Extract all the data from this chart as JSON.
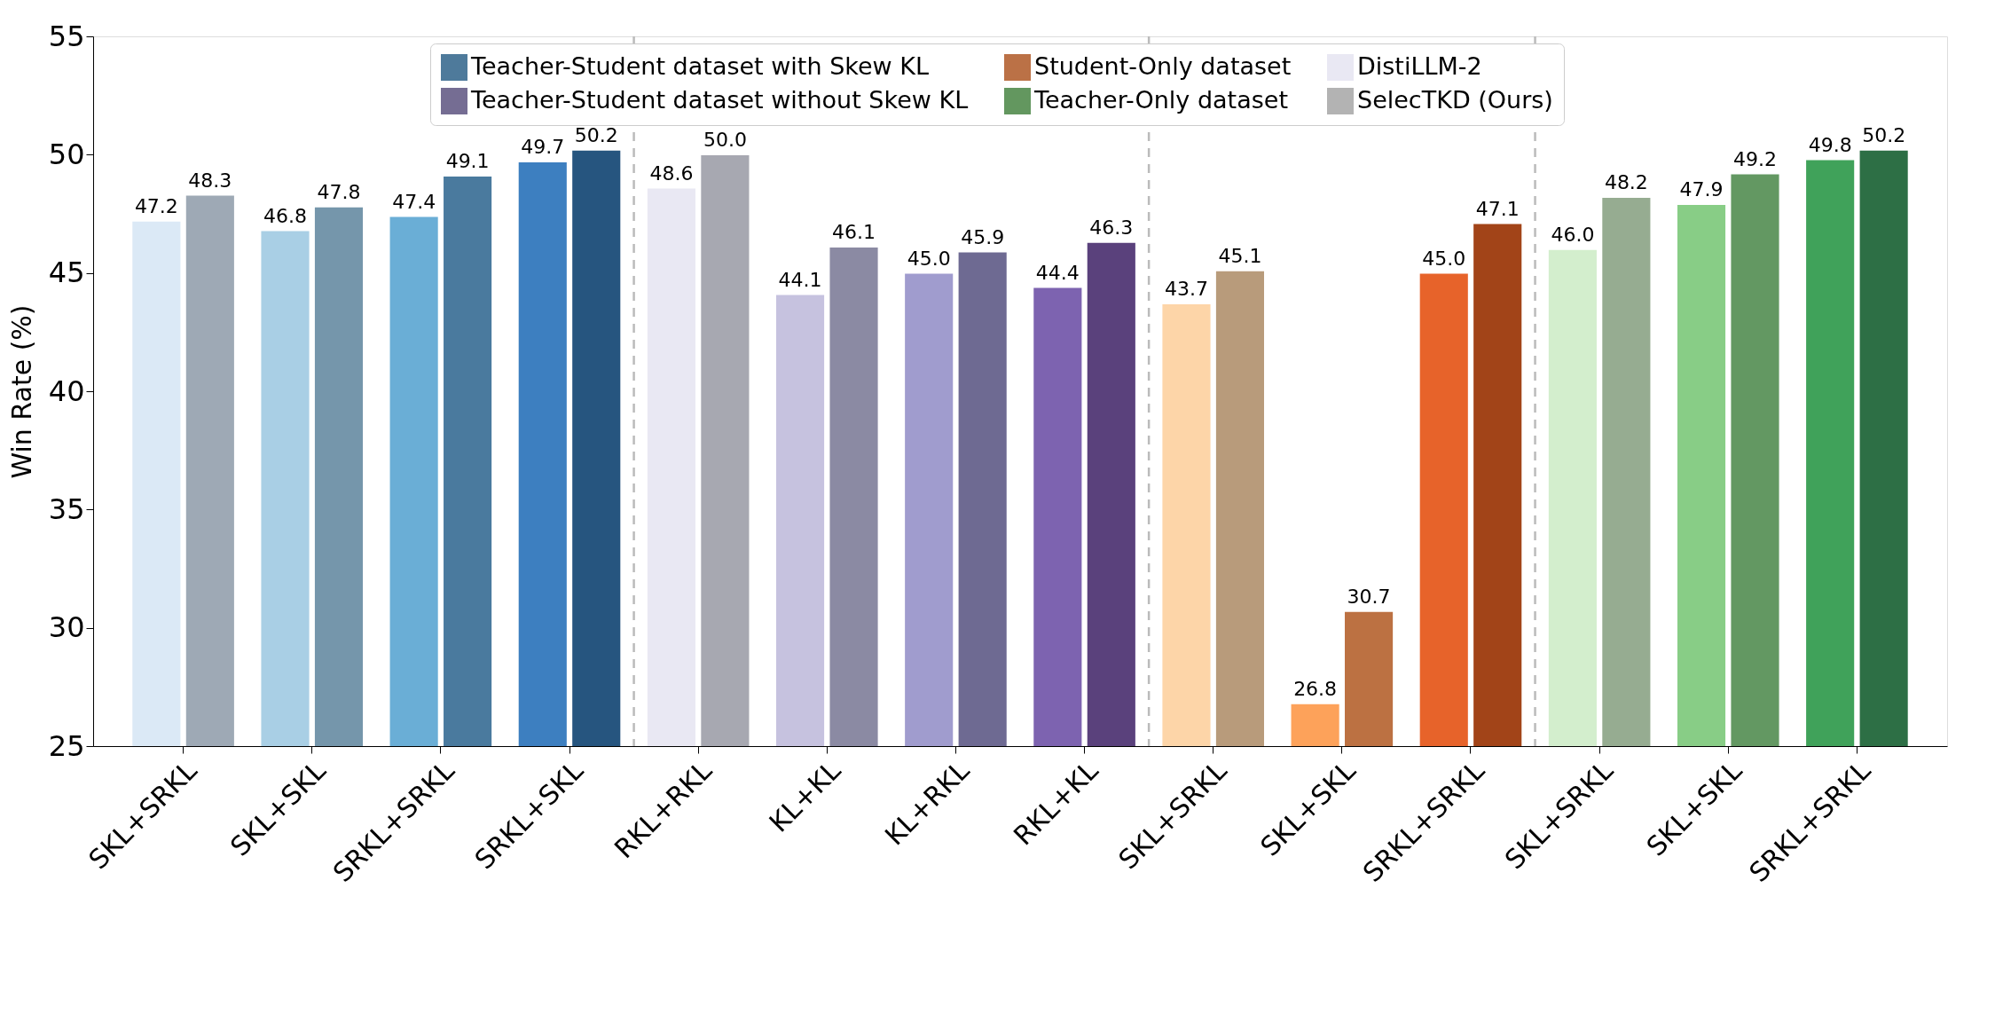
{
  "chart_data": {
    "type": "bar",
    "ylabel": "Win Rate (%)",
    "categories": [
      "SKL+SRKL",
      "SKL+SKL",
      "SRKL+SRKL",
      "SRKL+SKL",
      "RKL+RKL",
      "KL+KL",
      "KL+RKL",
      "RKL+KL",
      "SKL+SRKL",
      "SKL+SKL",
      "SRKL+SRKL",
      "SKL+SRKL",
      "SKL+SKL",
      "SRKL+SRKL"
    ],
    "series": [
      {
        "name": "Teacher-Student dataset with Skew KL",
        "color": "#4e7a9b",
        "values": [
          null,
          null,
          null,
          null,
          null,
          null,
          null,
          null,
          null,
          null,
          null,
          null,
          null,
          null
        ]
      },
      {
        "name": "Teacher-Student dataset without Skew KL",
        "color": "#756d93",
        "values": [
          null,
          null,
          null,
          null,
          null,
          null,
          null,
          null,
          null,
          null,
          null,
          null,
          null,
          null
        ]
      },
      {
        "name": "Student-Only dataset",
        "color": "#bb7146",
        "values": [
          null,
          null,
          null,
          null,
          null,
          null,
          null,
          null,
          null,
          null,
          null,
          null,
          null,
          null
        ]
      },
      {
        "name": "Teacher-Only dataset",
        "color": "#63975f",
        "values": [
          null,
          null,
          null,
          null,
          null,
          null,
          null,
          null,
          null,
          null,
          null,
          null,
          null,
          null
        ]
      },
      {
        "name": "DistiLLM-2",
        "color": "#e9e8f3",
        "values": [
          47.2,
          46.8,
          47.4,
          49.7,
          48.6,
          44.1,
          45.0,
          44.4,
          43.7,
          26.8,
          45.0,
          46.0,
          47.9,
          49.8
        ],
        "colors": [
          "#dbe9f6",
          "#a9cfe5",
          "#6aaed6",
          "#3d7fc0",
          "#e9e8f3",
          "#c6c2df",
          "#a09cce",
          "#7d63b0",
          "#fdd5a8",
          "#fda25a",
          "#e7632a",
          "#d3eecd",
          "#88cd86",
          "#40a25a"
        ],
        "value_labels": [
          "47.2",
          "46.8",
          "47.4",
          "49.7",
          "48.6",
          "44.1",
          "45.0",
          "44.4",
          "43.7",
          "26.8",
          "45.0",
          "46.0",
          "47.9",
          "49.8"
        ]
      },
      {
        "name": "SelecTKD (Ours)",
        "color": "#b3b3b3",
        "values": [
          48.3,
          47.8,
          49.1,
          50.2,
          50.0,
          46.1,
          45.9,
          46.3,
          45.1,
          30.7,
          47.1,
          48.2,
          49.2,
          50.2
        ],
        "colors": [
          "#9ea9b5",
          "#7596ab",
          "#4a7a9e",
          "#26557f",
          "#a7a8b1",
          "#8b8aa3",
          "#6e6a92",
          "#5a417c",
          "#b89b7b",
          "#bc7142",
          "#a24418",
          "#96ac91",
          "#639862",
          "#2d6f45"
        ],
        "value_labels": [
          "48.3",
          "47.8",
          "49.1",
          "50.2",
          "50.0",
          "46.1",
          "45.9",
          "46.3",
          "45.1",
          "30.7",
          "47.1",
          "48.2",
          "49.2",
          "50.2"
        ]
      }
    ],
    "ylim": [
      25,
      55
    ],
    "yticks": [
      25,
      30,
      35,
      40,
      45,
      50,
      55
    ],
    "legend": "top",
    "grid": false
  }
}
